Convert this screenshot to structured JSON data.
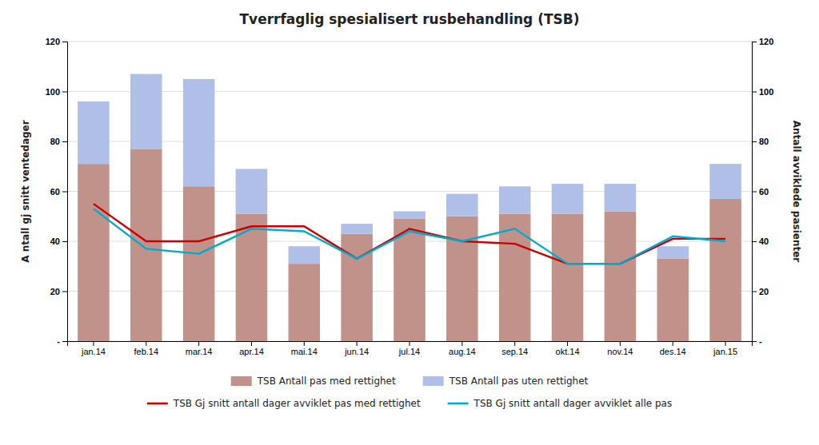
{
  "chart_data": {
    "type": "bar",
    "title": "Tverrfaglig spesialisert rusbehandling (TSB)",
    "categories": [
      "jan.14",
      "feb.14",
      "mar.14",
      "apr.14",
      "mai.14",
      "jun.14",
      "jul.14",
      "aug.14",
      "sep.14",
      "okt.14",
      "nov.14",
      "des.14",
      "jan.15"
    ],
    "series": [
      {
        "name": "TSB Antall pas med rettighet",
        "type": "bar",
        "color": "#c0928a",
        "values": [
          71,
          77,
          62,
          51,
          31,
          43,
          49,
          50,
          51,
          51,
          52,
          33,
          57
        ]
      },
      {
        "name": "TSB Antall pas uten rettighet",
        "type": "bar",
        "color": "#b0bfe8",
        "values": [
          25,
          30,
          43,
          18,
          7,
          4,
          3,
          9,
          11,
          12,
          11,
          5,
          14
        ]
      },
      {
        "name": "TSB Gj snitt antall dager avviklet pas med rettighet",
        "type": "line",
        "axis": "y2",
        "color": "#cc0000",
        "values": [
          55,
          40,
          40,
          46,
          46,
          33,
          45,
          40,
          39,
          31,
          31,
          41,
          41
        ]
      },
      {
        "name": "TSB Gj snitt antall dager avviklet alle pas",
        "type": "line",
        "axis": "y2",
        "color": "#00aacc",
        "values": [
          53,
          37,
          35,
          45,
          44,
          33,
          44,
          40,
          45,
          31,
          31,
          42,
          40
        ]
      }
    ],
    "stacked": true,
    "y_label": "A ntall gj snitt ventedager",
    "y2_label": "Antall avviklede pasienter",
    "ylim": [
      0,
      120
    ],
    "yticks": [
      {
        "value": 0,
        "label": "-"
      },
      20,
      40,
      60,
      80,
      100,
      120
    ],
    "y2lim": [
      0,
      120
    ],
    "y2ticks": [
      {
        "value": 0,
        "label": "-"
      },
      20,
      40,
      60,
      80,
      100,
      120
    ],
    "grid": true,
    "legend": "bottom"
  }
}
